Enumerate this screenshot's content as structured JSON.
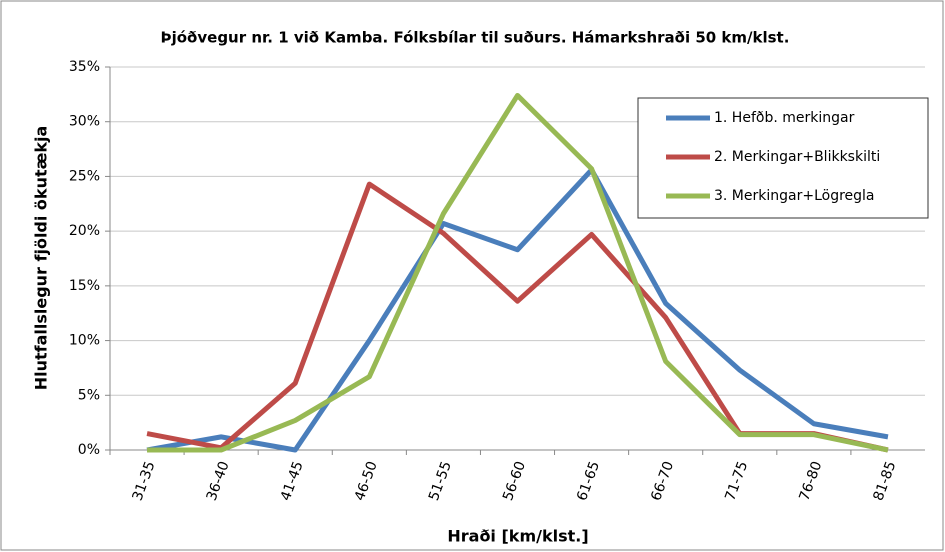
{
  "chart_data": {
    "type": "line",
    "title": "Þjóðvegur nr. 1 við Kamba. Fólksbílar til suðurs. Hámarkshraði 50 km/klst.",
    "x_label": "Hraði [km/klst.]",
    "y_label": "Hlutfallslegur fjöldi ökutækja",
    "categories": [
      "31-35",
      "36-40",
      "41-45",
      "46-50",
      "51-55",
      "56-60",
      "61-65",
      "66-70",
      "71-75",
      "76-80",
      "81-85"
    ],
    "series": [
      {
        "name": "1. Hefðb. merkingar",
        "color": "#4a7ebb",
        "values": [
          0,
          1.2,
          0,
          10,
          20.7,
          18.3,
          25.6,
          13.4,
          7.3,
          2.4,
          1.2
        ]
      },
      {
        "name": "2. Merkingar+Blikkskilti",
        "color": "#be4b48",
        "values": [
          1.5,
          0.2,
          6.1,
          24.3,
          19.8,
          13.6,
          19.7,
          12.1,
          1.5,
          1.5,
          0
        ]
      },
      {
        "name": "3. Merkingar+Lögregla",
        "color": "#98b954",
        "values": [
          0,
          0,
          2.7,
          6.7,
          21.6,
          32.4,
          25.7,
          8.1,
          1.4,
          1.4,
          0
        ]
      }
    ],
    "ylim": [
      0,
      35
    ],
    "yticks": [
      {
        "value": 0,
        "label": "0%"
      },
      {
        "value": 5,
        "label": "5%"
      },
      {
        "value": 10,
        "label": "10%"
      },
      {
        "value": 15,
        "label": "15%"
      },
      {
        "value": 20,
        "label": "20%"
      },
      {
        "value": 25,
        "label": "25%"
      },
      {
        "value": 30,
        "label": "30%"
      },
      {
        "value": 35,
        "label": "35%"
      }
    ],
    "grid": true,
    "legend": "top-right"
  }
}
